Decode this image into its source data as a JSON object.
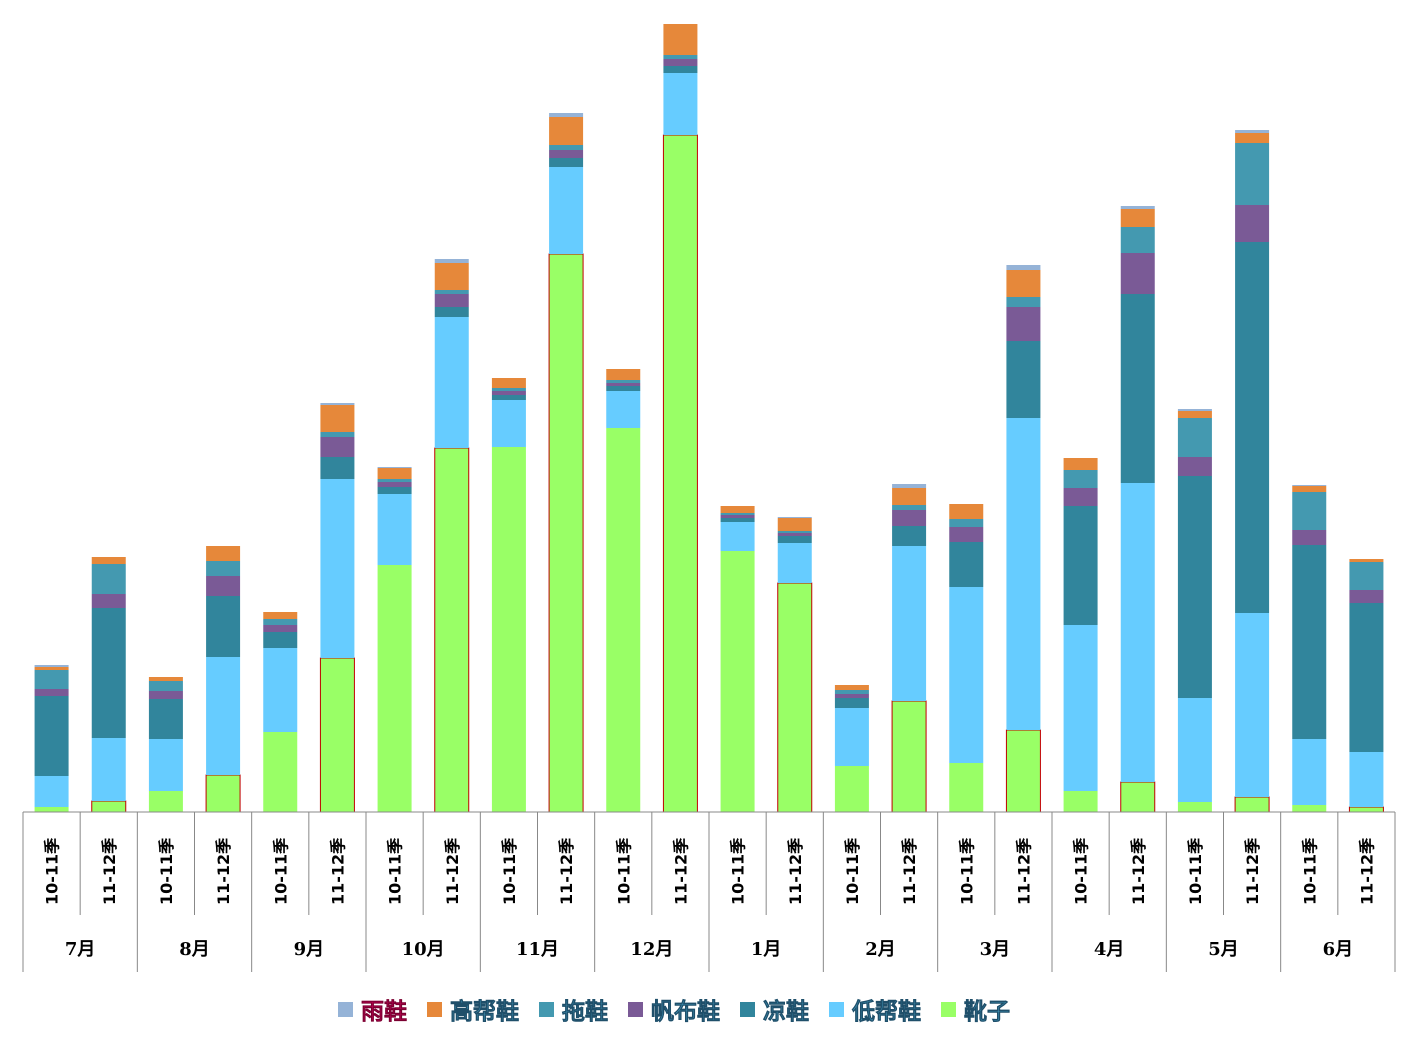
{
  "chart_data": {
    "type": "bar",
    "stacked": true,
    "title": "",
    "xlabel": "",
    "ylabel": "",
    "ylim": [
      0,
      790
    ],
    "grid": false,
    "legend_position": "bottom",
    "months": [
      "7月",
      "8月",
      "9月",
      "10月",
      "11月",
      "12月",
      "1月",
      "2月",
      "3月",
      "4月",
      "5月",
      "6月"
    ],
    "seasons": [
      "10-11季",
      "11-12季"
    ],
    "series": [
      {
        "name": "靴子",
        "color": "#99ff66",
        "values": [
          5,
          11,
          21,
          37,
          80,
          154,
          247,
          364,
          365,
          558,
          384,
          677,
          261,
          229,
          46,
          111,
          49,
          82,
          21,
          30,
          10,
          15,
          7,
          5
        ]
      },
      {
        "name": "低帮鞋",
        "color": "#66ccff",
        "values": [
          31,
          63,
          52,
          118,
          84,
          179,
          71,
          131,
          47,
          87,
          37,
          62,
          29,
          40,
          58,
          155,
          176,
          312,
          166,
          299,
          104,
          184,
          66,
          55
        ]
      },
      {
        "name": "凉鞋",
        "color": "#31859c",
        "values": [
          80,
          130,
          40,
          61,
          16,
          22,
          7,
          10,
          5,
          9,
          5,
          7,
          4,
          7,
          10,
          20,
          45,
          77,
          119,
          189,
          222,
          371,
          194,
          149
        ]
      },
      {
        "name": "帆布鞋",
        "color": "#7a5a96",
        "values": [
          7,
          14,
          8,
          20,
          7,
          20,
          5,
          13,
          4,
          8,
          3,
          7,
          3,
          3,
          4,
          16,
          15,
          34,
          18,
          41,
          19,
          37,
          15,
          13
        ]
      },
      {
        "name": "拖鞋",
        "color": "#4499b0",
        "values": [
          19,
          30,
          10,
          15,
          6,
          5,
          3,
          4,
          3,
          5,
          3,
          4,
          2,
          2,
          4,
          5,
          8,
          10,
          18,
          26,
          39,
          62,
          38,
          28
        ]
      },
      {
        "name": "高帮鞋",
        "color": "#e6883a",
        "values": [
          3,
          7,
          4,
          15,
          7,
          27,
          11,
          27,
          10,
          28,
          11,
          31,
          7,
          13,
          5,
          17,
          15,
          27,
          12,
          18,
          7,
          10,
          6,
          3
        ]
      },
      {
        "name": "雨鞋",
        "color": "#95b3d7",
        "values": [
          2,
          0,
          0,
          0,
          0,
          2,
          1,
          4,
          0,
          4,
          0,
          0,
          0,
          1,
          0,
          4,
          0,
          5,
          0,
          3,
          2,
          3,
          1,
          0
        ]
      }
    ],
    "legend_order": [
      "雨鞋",
      "高帮鞋",
      "拖鞋",
      "帆布鞋",
      "凉鞋",
      "低帮鞋",
      "靴子"
    ]
  }
}
